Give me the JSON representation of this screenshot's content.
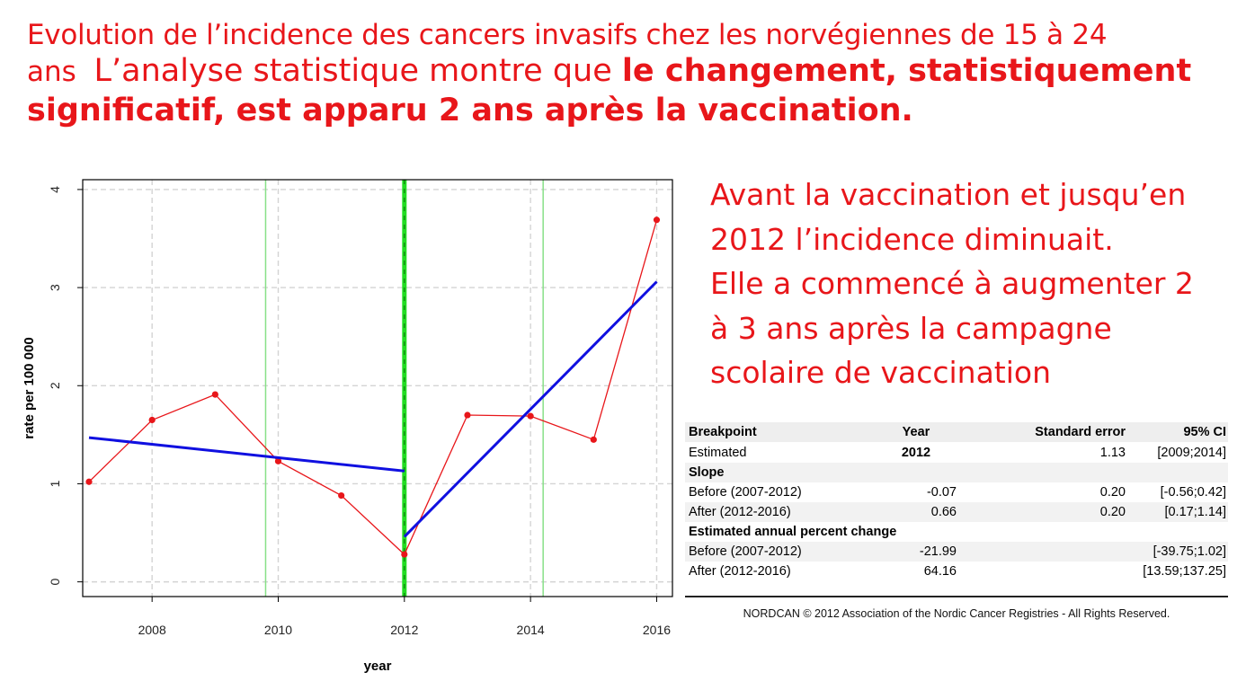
{
  "heading": {
    "line1": "Evolution de l’incidence des cancers invasifs chez les norvégiennes de 15 à 24",
    "line2_small": "ans",
    "line2_text": "L’analyse statistique montre que ",
    "line2_bold": "le changement, statistiquement",
    "line3_bold": "significatif, est apparu 2 ans après la vaccination."
  },
  "side_text": {
    "lines": [
      "Avant la vaccination et jusqu’en",
      "2012 l’incidence diminuait.",
      "Elle a commencé à augmenter 2",
      "à 3 ans après la campagne",
      "scolaire de vaccination"
    ]
  },
  "chart_data": {
    "type": "line",
    "title": "",
    "xlabel": "year",
    "ylabel": "rate per 100 000",
    "xlim": [
      2006.9,
      2016.25
    ],
    "ylim": [
      -0.15,
      4.1
    ],
    "x_ticks": [
      2008,
      2010,
      2012,
      2014,
      2016
    ],
    "y_ticks": [
      0,
      1,
      2,
      3,
      4
    ],
    "grid": true,
    "series": [
      {
        "x": [
          2007,
          2008,
          2009,
          2010,
          2011,
          2012,
          2013,
          2014,
          2015,
          2016
        ],
        "values": [
          1.02,
          1.65,
          1.91,
          1.23,
          0.88,
          0.28,
          1.7,
          1.69,
          1.45,
          3.69
        ],
        "color": "#e8161a",
        "style": "points-and-lines"
      },
      {
        "x": [
          2007,
          2012
        ],
        "values": [
          1.47,
          1.13
        ],
        "color": "#1010e0",
        "style": "fit"
      },
      {
        "x": [
          2012,
          2016
        ],
        "values": [
          0.46,
          3.06
        ],
        "color": "#1010e0",
        "style": "fit"
      }
    ],
    "breakpoint": {
      "x": 2012,
      "color": "#22dd22"
    },
    "ci_bounds": {
      "x": [
        2009.8,
        2014.2
      ],
      "color": "#88e088"
    }
  },
  "stats_table": {
    "header": [
      "Breakpoint",
      "Year",
      "Standard error",
      "95% CI"
    ],
    "rows": [
      {
        "kind": "data",
        "cells": [
          "Estimated",
          "2012",
          "1.13",
          "[2009;2014]"
        ]
      },
      {
        "kind": "section",
        "cells": [
          "Slope"
        ]
      },
      {
        "kind": "data",
        "cells": [
          "Before (2007-2012)",
          "-0.07",
          "0.20",
          "[-0.56;0.42]"
        ]
      },
      {
        "kind": "data",
        "cells": [
          "After (2012-2016)",
          "0.66",
          "0.20",
          "[0.17;1.14]"
        ]
      },
      {
        "kind": "section",
        "cells": [
          "Estimated annual percent change"
        ]
      },
      {
        "kind": "data",
        "cells": [
          "Before (2007-2012)",
          "-21.99",
          "",
          "[-39.75;1.02]"
        ]
      },
      {
        "kind": "data",
        "cells": [
          "After (2012-2016)",
          "64.16",
          "",
          "[13.59;137.25]"
        ]
      }
    ]
  },
  "footer": {
    "copyright": "NORDCAN © 2012 Association of the Nordic Cancer Registries - All Rights Reserved."
  }
}
